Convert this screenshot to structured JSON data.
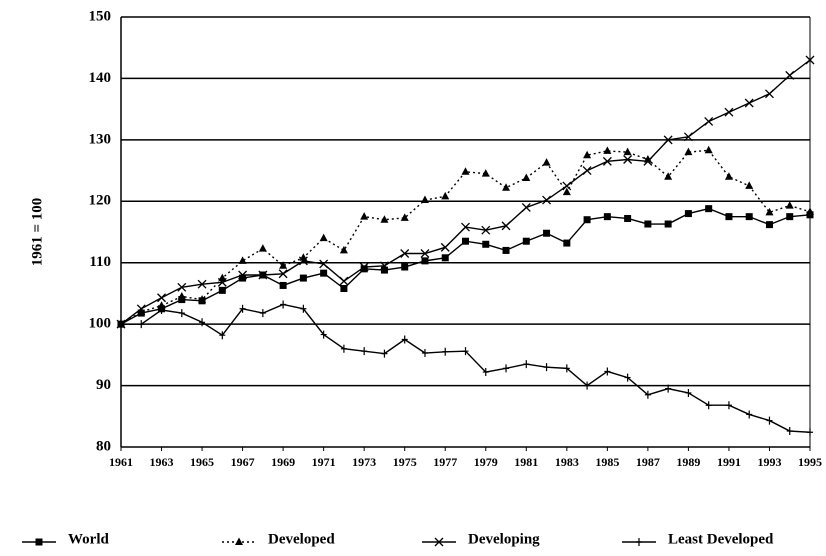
{
  "chart_data": {
    "type": "line",
    "y_label": "1961 = 100",
    "x": [
      1961,
      1962,
      1963,
      1964,
      1965,
      1966,
      1967,
      1968,
      1969,
      1970,
      1971,
      1972,
      1973,
      1974,
      1975,
      1976,
      1977,
      1978,
      1979,
      1980,
      1981,
      1982,
      1983,
      1984,
      1985,
      1986,
      1987,
      1988,
      1989,
      1990,
      1991,
      1992,
      1993,
      1994,
      1995
    ],
    "xlim": [
      1961,
      1995
    ],
    "xticks": [
      1961,
      1963,
      1965,
      1967,
      1969,
      1971,
      1973,
      1975,
      1977,
      1979,
      1981,
      1983,
      1985,
      1987,
      1989,
      1991,
      1993,
      1995
    ],
    "ylim": [
      80,
      150
    ],
    "yticks": [
      80,
      90,
      100,
      110,
      120,
      130,
      140,
      150
    ],
    "grid": true,
    "series": [
      {
        "name": "World",
        "color": "#000000",
        "marker": "square",
        "dash": "solid",
        "values": [
          100,
          101.8,
          102.5,
          104,
          103.8,
          105.5,
          107.5,
          108,
          106.3,
          107.5,
          108.3,
          105.8,
          109,
          108.8,
          109.3,
          110.3,
          110.8,
          113.5,
          113,
          112,
          113.5,
          114.8,
          113.2,
          117,
          117.5,
          117.2,
          116.3,
          116.3,
          118,
          118.8,
          117.5,
          117.5,
          116.2,
          117.5,
          117.8
        ]
      },
      {
        "name": "Developed",
        "color": "#000000",
        "marker": "triangle",
        "dash": "dotted",
        "values": [
          100,
          102,
          103,
          104.5,
          104,
          107.5,
          110.3,
          112.3,
          109.5,
          110.8,
          114,
          112,
          117.5,
          117,
          117.3,
          120.2,
          120.8,
          124.8,
          124.5,
          122.2,
          123.8,
          126.3,
          121.5,
          127.5,
          128.2,
          128,
          126.8,
          124,
          128,
          128.3,
          124,
          122.5,
          118.2,
          119.3,
          118.3
        ]
      },
      {
        "name": "Developing",
        "color": "#000000",
        "marker": "cross",
        "dash": "solid",
        "values": [
          100,
          102.5,
          104.3,
          106,
          106.5,
          106.8,
          108,
          108,
          108.2,
          110.3,
          109.8,
          107,
          109.3,
          109.5,
          111.5,
          111.5,
          112.5,
          115.8,
          115.3,
          116,
          119,
          120.2,
          122.5,
          125,
          126.5,
          126.8,
          126.5,
          130,
          130.5,
          133,
          134.5,
          136,
          137.5,
          140.5,
          143
        ]
      },
      {
        "name": "Least Developed",
        "color": "#000000",
        "marker": "plus",
        "dash": "solid",
        "values": [
          100,
          100,
          102.3,
          101.8,
          100.3,
          98.2,
          102.5,
          101.8,
          103.2,
          102.5,
          98.3,
          96,
          95.6,
          95.2,
          97.5,
          95.3,
          95.5,
          95.6,
          92.2,
          92.8,
          93.5,
          93,
          92.8,
          90,
          92.3,
          91.3,
          88.5,
          89.5,
          88.8,
          86.8,
          86.8,
          85.3,
          84.3,
          82.6,
          82.4
        ]
      }
    ]
  }
}
